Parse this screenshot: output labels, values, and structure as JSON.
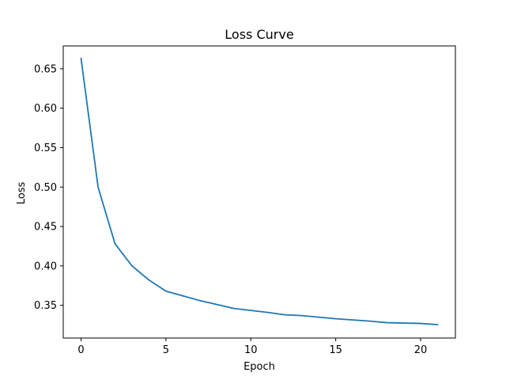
{
  "chart_data": {
    "type": "line",
    "title": "Loss Curve",
    "xlabel": "Epoch",
    "ylabel": "Loss",
    "xlim": [
      -1.05,
      22.05
    ],
    "ylim": [
      0.3085,
      0.679
    ],
    "xticks": [
      0,
      5,
      10,
      15,
      20
    ],
    "yticks": [
      0.35,
      0.4,
      0.45,
      0.5,
      0.55,
      0.6,
      0.65
    ],
    "grid": false,
    "line_color": "#1f77b4",
    "series": [
      {
        "x": [
          0,
          1,
          2,
          3,
          4,
          5,
          6,
          7,
          8,
          9,
          10,
          11,
          12,
          13,
          14,
          15,
          16,
          17,
          18,
          19,
          20,
          21
        ],
        "values": [
          0.663,
          0.5,
          0.428,
          0.4,
          0.382,
          0.368,
          0.362,
          0.356,
          0.351,
          0.346,
          0.3435,
          0.341,
          0.338,
          0.337,
          0.335,
          0.333,
          0.3315,
          0.33,
          0.328,
          0.3275,
          0.327,
          0.3255
        ]
      }
    ]
  }
}
